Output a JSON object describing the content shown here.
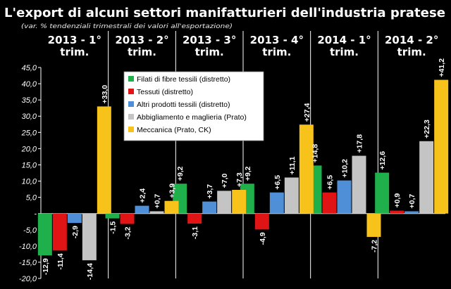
{
  "chart_data": {
    "type": "bar",
    "title": "L'export di alcuni settori manifatturieri dell'industria pratese",
    "subtitle": "(var. % tendenziali trimestrali dei valori all'esportazione)",
    "categories": [
      [
        "2013 - 1°",
        "trim."
      ],
      [
        "2013 - 2°",
        "trim."
      ],
      [
        "2013 - 3°",
        "trim."
      ],
      [
        "2013 - 4°",
        "trim."
      ],
      [
        "2014 - 1°",
        "trim."
      ],
      [
        "2014 - 2°",
        "trim."
      ]
    ],
    "series": [
      {
        "name": "Filati di fibre tessili (distretto)",
        "color": "#1fb04b",
        "values": [
          -12.9,
          -1.5,
          9.2,
          9.2,
          14.8,
          12.6
        ],
        "labels": [
          "-12,9",
          "-1,5",
          "+9,2",
          "+9,2",
          "+14,8",
          "+12,6"
        ]
      },
      {
        "name": "Tessuti (distretto)",
        "color": "#e01414",
        "values": [
          -11.4,
          -3.2,
          -3.1,
          -4.9,
          6.5,
          0.9
        ],
        "labels": [
          "-11,4",
          "-3,2",
          "-3,1",
          "-4,9",
          "+6,5",
          "+0,9"
        ]
      },
      {
        "name": "Altri prodotti tessili (distretto)",
        "color": "#4f8fd8",
        "values": [
          -2.9,
          2.4,
          3.7,
          6.5,
          10.2,
          0.7
        ],
        "labels": [
          "-2,9",
          "+2,4",
          "+3,7",
          "+6,5",
          "+10,2",
          "+0,7"
        ]
      },
      {
        "name": "Abbigliamento e maglieria (Prato)",
        "color": "#c4c4c4",
        "values": [
          -14.4,
          0.7,
          7.0,
          11.1,
          17.8,
          22.3
        ],
        "labels": [
          "-14,4",
          "+0,7",
          "+7,0",
          "+11,1",
          "+17,8",
          "+22,3"
        ]
      },
      {
        "name": "Meccanica (Prato, CK)",
        "color": "#f7c21a",
        "values": [
          33.0,
          3.9,
          7.3,
          27.4,
          -7.2,
          41.2
        ],
        "labels": [
          "+33,0",
          "+3,9",
          "+7,3",
          "+27,4",
          "-7,2",
          "+41,2"
        ]
      }
    ],
    "ylim": [
      -20,
      45
    ],
    "yticks": [
      "-20,0",
      "-15,0",
      "-10,0",
      "-5,0",
      "-",
      "5,0",
      "10,0",
      "15,0",
      "20,0",
      "25,0",
      "30,0",
      "35,0",
      "40,0",
      "45,0"
    ],
    "ytick_values": [
      -20,
      -15,
      -10,
      -5,
      0,
      5,
      10,
      15,
      20,
      25,
      30,
      35,
      40,
      45
    ],
    "legend_position": "upper-left",
    "grid": false
  }
}
